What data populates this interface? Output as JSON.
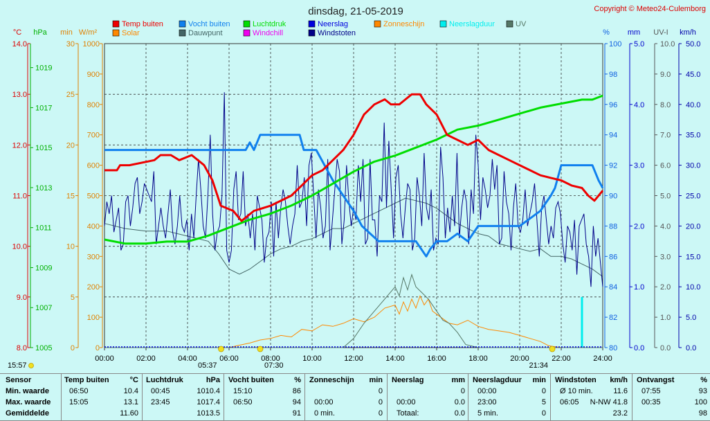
{
  "chart_data": {
    "type": "line",
    "title": "dinsdag, 21-05-2019",
    "copyright": "Copyright © Meteo24-Culemborg",
    "x_unit": "hours",
    "xlim": [
      0,
      24
    ],
    "x_ticks": [
      "00:00",
      "02:00",
      "04:00",
      "06:00",
      "08:00",
      "10:00",
      "12:00",
      "14:00",
      "16:00",
      "18:00",
      "20:00",
      "22:00",
      "24:00"
    ],
    "axes": [
      {
        "id": "temp",
        "unit": "°C",
        "range": [
          8,
          14
        ],
        "ticks": [
          "8.0",
          "9.0",
          "10.0",
          "11.0",
          "12.0",
          "13.0",
          "14.0"
        ],
        "color": "#dd0000"
      },
      {
        "id": "press",
        "unit": "hPa",
        "range": [
          1005,
          1020.2
        ],
        "ticks": [
          "1005",
          "1007",
          "1009",
          "1011",
          "1013",
          "1015",
          "1017",
          "1019"
        ],
        "color": "#00b000"
      },
      {
        "id": "min",
        "unit": "min",
        "range": [
          0,
          30
        ],
        "ticks": [
          "0",
          "5",
          "10",
          "15",
          "20",
          "25",
          "30"
        ],
        "color": "#e08000"
      },
      {
        "id": "solar",
        "unit": "W/m²",
        "range": [
          0,
          1000
        ],
        "ticks": [
          "0",
          "100",
          "200",
          "300",
          "400",
          "500",
          "600",
          "700",
          "800",
          "900",
          "1000"
        ],
        "color": "#e08000"
      },
      {
        "id": "hum",
        "unit": "%",
        "range": [
          80,
          100
        ],
        "ticks": [
          "80",
          "82",
          "84",
          "86",
          "88",
          "90",
          "92",
          "94",
          "96",
          "98",
          "100"
        ],
        "color": "#1060e0"
      },
      {
        "id": "rain",
        "unit": "mm",
        "range": [
          0,
          5
        ],
        "ticks": [
          "0.0",
          "1.0",
          "2.0",
          "3.0",
          "4.0",
          "5.0"
        ],
        "color": "#0000cc"
      },
      {
        "id": "uv",
        "unit": "UV-I",
        "range": [
          0,
          10
        ],
        "ticks": [
          "0.0",
          "1.0",
          "2.0",
          "3.0",
          "4.0",
          "5.0",
          "6.0",
          "7.0",
          "8.0",
          "9.0",
          "10.0"
        ],
        "color": "#555555"
      },
      {
        "id": "wind",
        "unit": "km/h",
        "range": [
          0,
          50
        ],
        "ticks": [
          "0.0",
          "5.0",
          "10.0",
          "15.0",
          "20.0",
          "25.0",
          "30.0",
          "35.0",
          "40.0",
          "45.0",
          "50.0"
        ],
        "color": "#0000aa"
      }
    ],
    "legend": [
      {
        "label": "Temp buiten",
        "color": "#ee0000"
      },
      {
        "label": "Vocht buiten",
        "color": "#1080ee"
      },
      {
        "label": "Luchtdruk",
        "color": "#00dd00"
      },
      {
        "label": "Neerslag",
        "color": "#0000dd"
      },
      {
        "label": "Zonneschijn",
        "color": "#ff8800"
      },
      {
        "label": "Neerslagduur",
        "color": "#00eeee"
      },
      {
        "label": "UV",
        "color": "#557766"
      },
      {
        "label": "Solar",
        "color": "#ff8800"
      },
      {
        "label": "Dauwpunt",
        "color": "#446666"
      },
      {
        "label": "Windchill",
        "color": "#ee00ee"
      },
      {
        "label": "Windstoten",
        "color": "#000088"
      }
    ],
    "series": [
      {
        "name": "Temp buiten",
        "axis": "temp",
        "color": "#ee0000",
        "width": 3,
        "x": [
          0,
          0.6,
          0.75,
          1.2,
          2.4,
          2.7,
          3.2,
          3.6,
          4.2,
          4.8,
          5.2,
          5.6,
          6.2,
          6.6,
          7.2,
          8,
          9,
          9.5,
          10,
          10.5,
          11,
          11.5,
          12,
          12.5,
          13,
          13.5,
          13.8,
          14.2,
          14.5,
          14.8,
          15.2,
          15.5,
          16,
          16.5,
          17,
          17.5,
          18,
          18.5,
          19,
          19.5,
          20,
          20.5,
          21,
          21.5,
          22,
          22.5,
          23,
          23.3,
          23.6,
          24
        ],
        "values": [
          11.5,
          11.5,
          11.6,
          11.6,
          11.7,
          11.8,
          11.8,
          11.7,
          11.8,
          11.6,
          11.3,
          10.8,
          10.7,
          10.5,
          10.7,
          10.8,
          11.0,
          11.2,
          11.4,
          11.5,
          11.7,
          11.9,
          12.2,
          12.6,
          12.8,
          12.9,
          12.8,
          12.8,
          12.9,
          13.0,
          13.0,
          12.8,
          12.6,
          12.2,
          12.1,
          12.0,
          12.1,
          11.9,
          11.8,
          11.7,
          11.6,
          11.5,
          11.4,
          11.35,
          11.3,
          11.2,
          11.15,
          11.0,
          10.9,
          11.1
        ]
      },
      {
        "name": "Vocht buiten",
        "axis": "hum",
        "color": "#1080ee",
        "width": 3,
        "x": [
          0,
          6.8,
          7.0,
          7.2,
          7.5,
          9.4,
          9.6,
          10.2,
          10.6,
          11.0,
          11.5,
          12.0,
          12.4,
          12.8,
          13.2,
          14.0,
          15.0,
          15.5,
          15.7,
          16.0,
          16.5,
          17.0,
          17.5,
          18.0,
          18.5,
          19.0,
          19.5,
          20.0,
          20.5,
          21.0,
          21.5,
          21.7,
          22.0,
          22.5,
          23.0,
          23.5,
          23.8,
          24
        ],
        "values": [
          93,
          93,
          93.5,
          93,
          94,
          94,
          93,
          93,
          92,
          91,
          90,
          89,
          88,
          87.5,
          87,
          87,
          87,
          86,
          86.5,
          87,
          87,
          87.5,
          87,
          88,
          88,
          88,
          88,
          88,
          88.5,
          89,
          90,
          90.5,
          92,
          92,
          92,
          92,
          91,
          90.5
        ]
      },
      {
        "name": "Luchtdruk",
        "axis": "press",
        "color": "#00dd00",
        "width": 3,
        "x": [
          0,
          1,
          2,
          3,
          4,
          5,
          6,
          7,
          8,
          9,
          10,
          11,
          12,
          13,
          14,
          15,
          16,
          17,
          18,
          19,
          20,
          21,
          22,
          23,
          23.5,
          24
        ],
        "values": [
          1010.4,
          1010.2,
          1010.2,
          1010.3,
          1010.3,
          1010.6,
          1011.0,
          1011.4,
          1011.7,
          1012.1,
          1012.6,
          1013.2,
          1013.8,
          1014.3,
          1014.6,
          1015.0,
          1015.4,
          1015.9,
          1016.1,
          1016.4,
          1016.7,
          1017.0,
          1017.2,
          1017.4,
          1017.4,
          1017.6
        ]
      },
      {
        "name": "Dauwpunt",
        "axis": "temp",
        "color": "#446666",
        "width": 1,
        "x": [
          0,
          1,
          2,
          3,
          4,
          5,
          5.5,
          6,
          6.5,
          7,
          7.5,
          8,
          8.5,
          9,
          9.5,
          10,
          10.5,
          11,
          11.5,
          12,
          12.5,
          13,
          13.5,
          14,
          14.5,
          15,
          15.5,
          16,
          16.5,
          17,
          17.5,
          18,
          18.5,
          19,
          19.5,
          20,
          20.5,
          21,
          21.5,
          22,
          22.5,
          23,
          23.5,
          24
        ],
        "values": [
          10.45,
          10.35,
          10.3,
          10.3,
          10.2,
          10.1,
          9.85,
          9.55,
          9.45,
          9.55,
          9.7,
          9.85,
          9.95,
          10.0,
          10.1,
          10.15,
          10.25,
          10.35,
          10.35,
          10.45,
          10.55,
          10.65,
          10.75,
          10.85,
          10.95,
          10.9,
          10.85,
          10.75,
          10.6,
          10.45,
          10.35,
          10.25,
          10.2,
          10.05,
          10.0,
          9.95,
          9.9,
          9.95,
          9.8,
          9.8,
          9.75,
          9.65,
          9.55,
          9.4
        ]
      },
      {
        "name": "Solar",
        "axis": "solar",
        "color": "#ff8800",
        "width": 1,
        "x": [
          0,
          6.0,
          6.5,
          7.0,
          7.5,
          8.0,
          8.5,
          9.0,
          9.5,
          10.0,
          10.5,
          11.0,
          11.5,
          12.0,
          12.5,
          13.0,
          13.5,
          14.0,
          14.2,
          14.4,
          14.6,
          14.8,
          15.0,
          15.2,
          15.4,
          15.6,
          15.8,
          16.0,
          16.3,
          16.6,
          17.0,
          17.5,
          18.0,
          18.5,
          19.0,
          19.5,
          20.0,
          20.5,
          21.0,
          21.4,
          22,
          24
        ],
        "values": [
          0,
          0,
          8,
          15,
          25,
          30,
          40,
          35,
          60,
          55,
          75,
          70,
          80,
          95,
          85,
          100,
          130,
          140,
          110,
          150,
          120,
          160,
          130,
          170,
          140,
          160,
          120,
          110,
          95,
          80,
          75,
          90,
          70,
          60,
          55,
          50,
          40,
          30,
          20,
          6,
          0,
          0
        ]
      },
      {
        "name": "UV",
        "axis": "uv",
        "color": "#557766",
        "width": 1,
        "x": [
          0,
          11.5,
          12.0,
          12.5,
          13.0,
          13.5,
          14.0,
          14.2,
          14.4,
          14.6,
          14.8,
          15.0,
          15.3,
          15.6,
          16.0,
          16.3,
          16.6,
          17.0,
          17.4,
          18.0,
          24
        ],
        "values": [
          0,
          0,
          0.3,
          0.8,
          1.2,
          1.6,
          2.0,
          1.7,
          2.3,
          1.9,
          2.4,
          2.0,
          1.8,
          1.6,
          1.2,
          0.9,
          0.8,
          0.5,
          0.1,
          0,
          0
        ]
      }
    ],
    "wind_gusts": {
      "axis": "wind",
      "color": "#000088",
      "values": [
        20,
        24,
        22,
        25,
        19,
        21,
        23,
        16,
        17,
        24,
        25,
        20,
        23,
        27,
        28,
        22,
        24,
        27,
        26,
        25,
        24,
        29,
        17,
        20,
        23,
        20,
        18,
        22,
        26,
        19,
        17,
        20,
        25,
        20,
        19,
        21,
        16,
        22,
        18,
        25,
        31,
        26,
        20,
        18,
        25,
        35,
        22,
        16,
        19,
        20,
        25,
        42,
        16,
        14,
        16,
        26,
        29,
        21,
        22,
        29,
        20,
        22,
        18,
        22,
        16,
        25,
        23,
        21,
        14,
        18,
        19,
        24,
        15,
        24,
        18,
        23,
        26,
        24,
        20,
        17,
        20,
        22,
        30,
        23,
        24,
        28,
        20,
        30,
        32,
        25,
        18,
        26,
        23,
        18,
        20,
        31,
        16,
        21,
        26,
        31,
        29,
        17,
        21,
        30,
        24,
        20,
        23,
        21,
        30,
        24,
        31,
        17,
        18,
        31,
        21,
        21,
        15,
        25,
        24,
        37,
        23,
        34,
        26,
        18,
        28,
        30,
        22,
        18,
        23,
        27,
        26,
        16,
        18,
        28,
        25,
        20,
        32,
        23,
        21,
        26,
        16,
        18,
        17,
        33,
        28,
        18,
        23,
        19,
        25,
        20,
        32,
        18,
        23,
        26,
        24,
        17,
        26,
        22,
        35,
        30,
        21,
        28,
        26,
        23,
        25,
        31,
        26,
        30,
        17,
        18,
        29,
        24,
        22,
        16,
        23,
        27,
        20,
        19,
        21,
        26,
        20,
        22,
        24,
        27,
        21,
        15,
        23,
        25,
        21,
        17,
        20,
        18,
        23,
        24,
        22,
        17,
        14,
        20,
        19,
        16,
        21,
        12,
        20,
        21,
        22,
        17,
        15,
        10,
        20,
        15,
        18,
        14,
        10
      ]
    },
    "neerslagduur_bar": {
      "x": 23.0,
      "value": 5,
      "axis": "min",
      "color": "#00eeee"
    },
    "sun_markers": [
      {
        "label": "05:37",
        "x": 5.617
      },
      {
        "label": "07:30",
        "x": 7.5
      },
      {
        "label": "21:34",
        "x": 21.567
      }
    ],
    "left_bottom_label": "15:57"
  },
  "stats": {
    "headers": {
      "sensor": "Sensor",
      "temp": "Temp buiten",
      "temp_unit": "°C",
      "press": "Luchtdruk",
      "press_unit": "hPa",
      "hum": "Vocht buiten",
      "hum_unit": "%",
      "sun": "Zonneschijn",
      "sun_unit": "min",
      "rain": "Neerslag",
      "rain_unit": "mm",
      "rainduur": "Neerslagduur",
      "rainduur_unit": "min",
      "wind": "Windstoten",
      "wind_unit": "km/h",
      "rad": "Ontvangst",
      "rad_unit": "%"
    },
    "rows": [
      {
        "label": "Min. waarde",
        "temp_t": "06:50",
        "temp_v": "10.4",
        "press_t": "00:45",
        "press_v": "1010.4",
        "hum_t": "15:10",
        "hum_v": "86",
        "sun_t": "",
        "sun_v": "0",
        "rain_t": "",
        "rain_v": "0",
        "rainduur_t": "00:00",
        "rainduur_v": "0",
        "wind_t": "Ø 10 min.",
        "wind_v": "11.6",
        "rad_t": "07:55",
        "rad_v": "93"
      },
      {
        "label": "Max. waarde",
        "temp_t": "15:05",
        "temp_v": "13.1",
        "press_t": "23:45",
        "press_v": "1017.4",
        "hum_t": "06:50",
        "hum_v": "94",
        "sun_t": "00:00",
        "sun_v": "0",
        "rain_t": "00:00",
        "rain_v": "0.0",
        "rainduur_t": "23:00",
        "rainduur_v": "5",
        "wind_t": "06:05",
        "wind_v": "N-NW 41.8",
        "rad_t": "00:35",
        "rad_v": "100"
      },
      {
        "label": "Gemiddelde",
        "temp_t": "",
        "temp_v": "11.60",
        "press_t": "",
        "press_v": "1013.5",
        "hum_t": "",
        "hum_v": "91",
        "sun_t": "0 min.",
        "sun_v": "0",
        "rain_t": "Totaal:",
        "rain_v": "0.0",
        "rainduur_t": "5 min.",
        "rainduur_v": "0",
        "wind_t": "",
        "wind_v": "23.2",
        "rad_t": "",
        "rad_v": "98"
      }
    ]
  }
}
